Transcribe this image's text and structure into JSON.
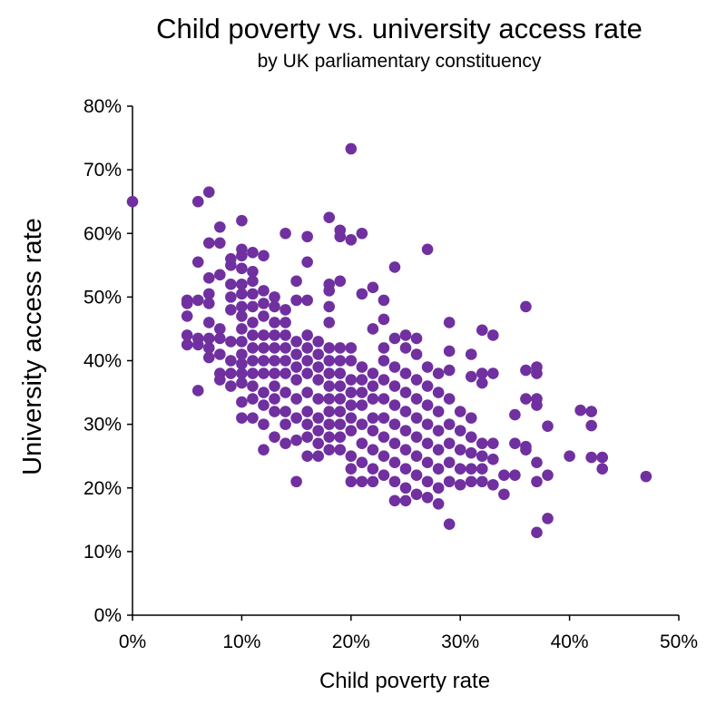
{
  "chart_data": {
    "type": "scatter",
    "title": "Child poverty vs. university access rate",
    "subtitle": "by UK parliamentary constituency",
    "xlabel": "Child poverty rate",
    "ylabel": "University access rate",
    "xlim": [
      0,
      0.5
    ],
    "ylim": [
      0,
      0.8
    ],
    "x_ticks": [
      "0%",
      "10%",
      "20%",
      "30%",
      "40%",
      "50%"
    ],
    "y_ticks": [
      "0%",
      "10%",
      "20%",
      "30%",
      "40%",
      "50%",
      "60%",
      "70%",
      "80%"
    ],
    "grid": false,
    "marker_color": "#7030a0",
    "points": [
      [
        0.0,
        0.65
      ],
      [
        0.06,
        0.65
      ],
      [
        0.07,
        0.665
      ],
      [
        0.1,
        0.62
      ],
      [
        0.08,
        0.61
      ],
      [
        0.06,
        0.555
      ],
      [
        0.07,
        0.585
      ],
      [
        0.08,
        0.585
      ],
      [
        0.08,
        0.535
      ],
      [
        0.07,
        0.53
      ],
      [
        0.05,
        0.495
      ],
      [
        0.05,
        0.49
      ],
      [
        0.05,
        0.47
      ],
      [
        0.06,
        0.495
      ],
      [
        0.07,
        0.505
      ],
      [
        0.07,
        0.49
      ],
      [
        0.05,
        0.44
      ],
      [
        0.05,
        0.425
      ],
      [
        0.06,
        0.435
      ],
      [
        0.06,
        0.425
      ],
      [
        0.07,
        0.46
      ],
      [
        0.07,
        0.435
      ],
      [
        0.07,
        0.42
      ],
      [
        0.07,
        0.405
      ],
      [
        0.08,
        0.45
      ],
      [
        0.08,
        0.435
      ],
      [
        0.08,
        0.41
      ],
      [
        0.08,
        0.38
      ],
      [
        0.08,
        0.37
      ],
      [
        0.06,
        0.353
      ],
      [
        0.09,
        0.56
      ],
      [
        0.09,
        0.55
      ],
      [
        0.09,
        0.52
      ],
      [
        0.09,
        0.5
      ],
      [
        0.09,
        0.48
      ],
      [
        0.09,
        0.43
      ],
      [
        0.09,
        0.4
      ],
      [
        0.09,
        0.38
      ],
      [
        0.09,
        0.36
      ],
      [
        0.1,
        0.575
      ],
      [
        0.1,
        0.565
      ],
      [
        0.1,
        0.545
      ],
      [
        0.1,
        0.52
      ],
      [
        0.1,
        0.505
      ],
      [
        0.1,
        0.485
      ],
      [
        0.1,
        0.47
      ],
      [
        0.1,
        0.45
      ],
      [
        0.1,
        0.43
      ],
      [
        0.1,
        0.41
      ],
      [
        0.1,
        0.395
      ],
      [
        0.1,
        0.38
      ],
      [
        0.1,
        0.365
      ],
      [
        0.1,
        0.335
      ],
      [
        0.1,
        0.31
      ],
      [
        0.11,
        0.57
      ],
      [
        0.11,
        0.54
      ],
      [
        0.11,
        0.525
      ],
      [
        0.11,
        0.505
      ],
      [
        0.11,
        0.485
      ],
      [
        0.11,
        0.46
      ],
      [
        0.11,
        0.44
      ],
      [
        0.11,
        0.42
      ],
      [
        0.11,
        0.4
      ],
      [
        0.11,
        0.38
      ],
      [
        0.11,
        0.36
      ],
      [
        0.11,
        0.34
      ],
      [
        0.11,
        0.31
      ],
      [
        0.12,
        0.565
      ],
      [
        0.12,
        0.51
      ],
      [
        0.12,
        0.49
      ],
      [
        0.12,
        0.47
      ],
      [
        0.12,
        0.44
      ],
      [
        0.12,
        0.42
      ],
      [
        0.12,
        0.4
      ],
      [
        0.12,
        0.38
      ],
      [
        0.12,
        0.35
      ],
      [
        0.12,
        0.33
      ],
      [
        0.12,
        0.3
      ],
      [
        0.12,
        0.26
      ],
      [
        0.13,
        0.5
      ],
      [
        0.13,
        0.485
      ],
      [
        0.13,
        0.46
      ],
      [
        0.13,
        0.44
      ],
      [
        0.13,
        0.42
      ],
      [
        0.13,
        0.4
      ],
      [
        0.13,
        0.38
      ],
      [
        0.13,
        0.36
      ],
      [
        0.13,
        0.34
      ],
      [
        0.13,
        0.32
      ],
      [
        0.13,
        0.28
      ],
      [
        0.14,
        0.6
      ],
      [
        0.14,
        0.48
      ],
      [
        0.14,
        0.46
      ],
      [
        0.14,
        0.44
      ],
      [
        0.14,
        0.42
      ],
      [
        0.14,
        0.4
      ],
      [
        0.14,
        0.38
      ],
      [
        0.14,
        0.35
      ],
      [
        0.14,
        0.32
      ],
      [
        0.14,
        0.3
      ],
      [
        0.14,
        0.27
      ],
      [
        0.15,
        0.525
      ],
      [
        0.15,
        0.495
      ],
      [
        0.15,
        0.43
      ],
      [
        0.15,
        0.41
      ],
      [
        0.15,
        0.39
      ],
      [
        0.15,
        0.37
      ],
      [
        0.15,
        0.34
      ],
      [
        0.15,
        0.31
      ],
      [
        0.15,
        0.275
      ],
      [
        0.15,
        0.21
      ],
      [
        0.16,
        0.595
      ],
      [
        0.16,
        0.555
      ],
      [
        0.16,
        0.495
      ],
      [
        0.16,
        0.44
      ],
      [
        0.16,
        0.42
      ],
      [
        0.16,
        0.4
      ],
      [
        0.16,
        0.38
      ],
      [
        0.16,
        0.35
      ],
      [
        0.16,
        0.32
      ],
      [
        0.16,
        0.3
      ],
      [
        0.16,
        0.28
      ],
      [
        0.16,
        0.25
      ],
      [
        0.17,
        0.43
      ],
      [
        0.17,
        0.41
      ],
      [
        0.17,
        0.39
      ],
      [
        0.17,
        0.37
      ],
      [
        0.17,
        0.34
      ],
      [
        0.17,
        0.31
      ],
      [
        0.17,
        0.29
      ],
      [
        0.17,
        0.27
      ],
      [
        0.17,
        0.25
      ],
      [
        0.18,
        0.625
      ],
      [
        0.18,
        0.52
      ],
      [
        0.18,
        0.51
      ],
      [
        0.18,
        0.485
      ],
      [
        0.18,
        0.46
      ],
      [
        0.18,
        0.42
      ],
      [
        0.18,
        0.4
      ],
      [
        0.18,
        0.38
      ],
      [
        0.18,
        0.36
      ],
      [
        0.18,
        0.34
      ],
      [
        0.18,
        0.32
      ],
      [
        0.18,
        0.3
      ],
      [
        0.18,
        0.28
      ],
      [
        0.18,
        0.26
      ],
      [
        0.19,
        0.605
      ],
      [
        0.19,
        0.595
      ],
      [
        0.19,
        0.525
      ],
      [
        0.19,
        0.42
      ],
      [
        0.19,
        0.4
      ],
      [
        0.19,
        0.38
      ],
      [
        0.19,
        0.36
      ],
      [
        0.19,
        0.34
      ],
      [
        0.19,
        0.32
      ],
      [
        0.19,
        0.3
      ],
      [
        0.19,
        0.28
      ],
      [
        0.19,
        0.26
      ],
      [
        0.2,
        0.733
      ],
      [
        0.2,
        0.59
      ],
      [
        0.2,
        0.42
      ],
      [
        0.2,
        0.4
      ],
      [
        0.2,
        0.37
      ],
      [
        0.2,
        0.35
      ],
      [
        0.2,
        0.33
      ],
      [
        0.2,
        0.31
      ],
      [
        0.2,
        0.29
      ],
      [
        0.2,
        0.25
      ],
      [
        0.2,
        0.23
      ],
      [
        0.2,
        0.21
      ],
      [
        0.21,
        0.6
      ],
      [
        0.21,
        0.505
      ],
      [
        0.21,
        0.39
      ],
      [
        0.21,
        0.37
      ],
      [
        0.21,
        0.35
      ],
      [
        0.21,
        0.33
      ],
      [
        0.21,
        0.3
      ],
      [
        0.21,
        0.27
      ],
      [
        0.21,
        0.24
      ],
      [
        0.21,
        0.21
      ],
      [
        0.22,
        0.515
      ],
      [
        0.22,
        0.45
      ],
      [
        0.22,
        0.38
      ],
      [
        0.22,
        0.36
      ],
      [
        0.22,
        0.34
      ],
      [
        0.22,
        0.31
      ],
      [
        0.22,
        0.29
      ],
      [
        0.22,
        0.26
      ],
      [
        0.22,
        0.23
      ],
      [
        0.22,
        0.21
      ],
      [
        0.23,
        0.495
      ],
      [
        0.23,
        0.465
      ],
      [
        0.23,
        0.42
      ],
      [
        0.23,
        0.4
      ],
      [
        0.23,
        0.37
      ],
      [
        0.23,
        0.34
      ],
      [
        0.23,
        0.31
      ],
      [
        0.23,
        0.28
      ],
      [
        0.23,
        0.25
      ],
      [
        0.23,
        0.22
      ],
      [
        0.24,
        0.547
      ],
      [
        0.24,
        0.435
      ],
      [
        0.24,
        0.39
      ],
      [
        0.24,
        0.36
      ],
      [
        0.24,
        0.33
      ],
      [
        0.24,
        0.3
      ],
      [
        0.24,
        0.27
      ],
      [
        0.24,
        0.24
      ],
      [
        0.24,
        0.21
      ],
      [
        0.24,
        0.18
      ],
      [
        0.25,
        0.44
      ],
      [
        0.25,
        0.42
      ],
      [
        0.25,
        0.38
      ],
      [
        0.25,
        0.35
      ],
      [
        0.25,
        0.32
      ],
      [
        0.25,
        0.29
      ],
      [
        0.25,
        0.26
      ],
      [
        0.25,
        0.23
      ],
      [
        0.25,
        0.2
      ],
      [
        0.25,
        0.18
      ],
      [
        0.26,
        0.435
      ],
      [
        0.26,
        0.41
      ],
      [
        0.26,
        0.37
      ],
      [
        0.26,
        0.34
      ],
      [
        0.26,
        0.31
      ],
      [
        0.26,
        0.28
      ],
      [
        0.26,
        0.25
      ],
      [
        0.26,
        0.22
      ],
      [
        0.26,
        0.19
      ],
      [
        0.27,
        0.575
      ],
      [
        0.27,
        0.39
      ],
      [
        0.27,
        0.36
      ],
      [
        0.27,
        0.33
      ],
      [
        0.27,
        0.3
      ],
      [
        0.27,
        0.27
      ],
      [
        0.27,
        0.24
      ],
      [
        0.27,
        0.21
      ],
      [
        0.27,
        0.185
      ],
      [
        0.28,
        0.38
      ],
      [
        0.28,
        0.35
      ],
      [
        0.28,
        0.32
      ],
      [
        0.28,
        0.29
      ],
      [
        0.28,
        0.26
      ],
      [
        0.28,
        0.23
      ],
      [
        0.28,
        0.2
      ],
      [
        0.28,
        0.175
      ],
      [
        0.29,
        0.46
      ],
      [
        0.29,
        0.415
      ],
      [
        0.29,
        0.385
      ],
      [
        0.29,
        0.34
      ],
      [
        0.29,
        0.3
      ],
      [
        0.29,
        0.27
      ],
      [
        0.29,
        0.24
      ],
      [
        0.29,
        0.21
      ],
      [
        0.29,
        0.143
      ],
      [
        0.3,
        0.32
      ],
      [
        0.3,
        0.29
      ],
      [
        0.3,
        0.26
      ],
      [
        0.3,
        0.23
      ],
      [
        0.3,
        0.205
      ],
      [
        0.31,
        0.41
      ],
      [
        0.31,
        0.375
      ],
      [
        0.31,
        0.31
      ],
      [
        0.31,
        0.28
      ],
      [
        0.31,
        0.255
      ],
      [
        0.31,
        0.23
      ],
      [
        0.31,
        0.21
      ],
      [
        0.32,
        0.448
      ],
      [
        0.32,
        0.38
      ],
      [
        0.32,
        0.365
      ],
      [
        0.32,
        0.27
      ],
      [
        0.32,
        0.25
      ],
      [
        0.32,
        0.23
      ],
      [
        0.32,
        0.21
      ],
      [
        0.33,
        0.44
      ],
      [
        0.33,
        0.38
      ],
      [
        0.33,
        0.27
      ],
      [
        0.33,
        0.245
      ],
      [
        0.33,
        0.205
      ],
      [
        0.34,
        0.22
      ],
      [
        0.34,
        0.19
      ],
      [
        0.35,
        0.315
      ],
      [
        0.35,
        0.27
      ],
      [
        0.35,
        0.22
      ],
      [
        0.36,
        0.485
      ],
      [
        0.36,
        0.385
      ],
      [
        0.36,
        0.34
      ],
      [
        0.36,
        0.265
      ],
      [
        0.36,
        0.26
      ],
      [
        0.37,
        0.39
      ],
      [
        0.37,
        0.38
      ],
      [
        0.37,
        0.34
      ],
      [
        0.37,
        0.33
      ],
      [
        0.37,
        0.24
      ],
      [
        0.37,
        0.21
      ],
      [
        0.37,
        0.13
      ],
      [
        0.38,
        0.297
      ],
      [
        0.38,
        0.22
      ],
      [
        0.38,
        0.152
      ],
      [
        0.4,
        0.25
      ],
      [
        0.41,
        0.322
      ],
      [
        0.42,
        0.32
      ],
      [
        0.42,
        0.298
      ],
      [
        0.42,
        0.248
      ],
      [
        0.43,
        0.248
      ],
      [
        0.43,
        0.23
      ],
      [
        0.47,
        0.218
      ]
    ]
  }
}
